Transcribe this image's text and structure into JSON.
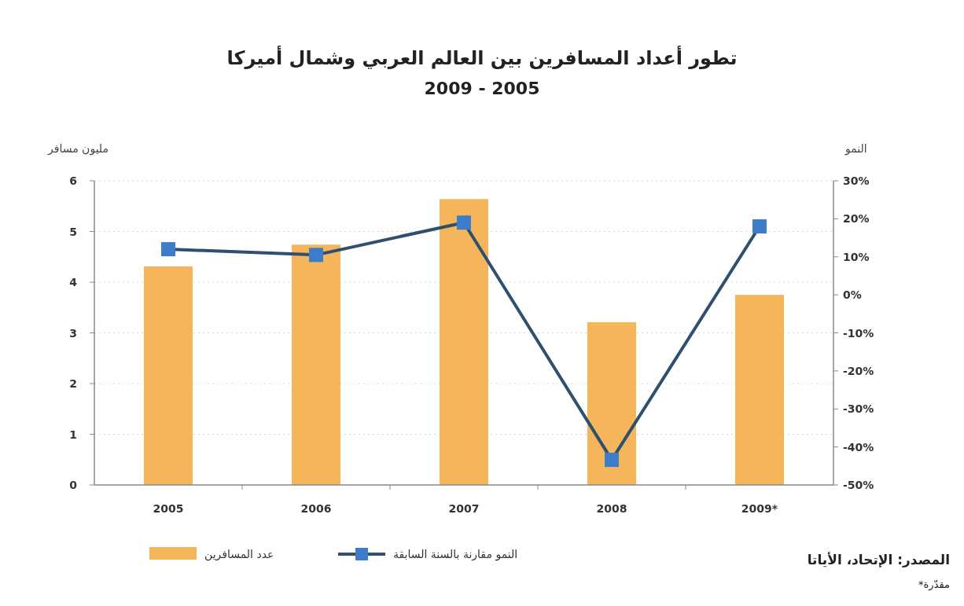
{
  "chart_data": {
    "type": "bar",
    "title": "تطور أعداد المسافرين بين العالم العربي وشمال أميركا",
    "subtitle": "2009 - 2005",
    "ylabel": "مليون مسافر",
    "y2label": "النمو",
    "categories": [
      "2005",
      "2006",
      "2007",
      "2008",
      "2009*"
    ],
    "series": [
      {
        "name": "عدد المسافرين",
        "color": "#f5b55a",
        "values": [
          4.31,
          4.74,
          5.64,
          3.21,
          3.75
        ]
      },
      {
        "name": "النمو مقارنة بالسنة السابقة",
        "type": "line",
        "axis": "y2",
        "color": "#2f4f6f",
        "marker": "square",
        "values": [
          12,
          10.5,
          19,
          -43.4,
          18
        ]
      }
    ],
    "ylim": [
      0,
      6
    ],
    "yticks": [
      0,
      1,
      2,
      3,
      4,
      5,
      6
    ],
    "y2lim": [
      -50,
      30
    ],
    "y2ticks": [
      {
        "value": 30,
        "label": "30%"
      },
      {
        "value": 20,
        "label": "20%"
      },
      {
        "value": 10,
        "label": "10%"
      },
      {
        "value": 0,
        "label": "0%"
      },
      {
        "value": -10,
        "label": "-10%"
      },
      {
        "value": -20,
        "label": "-20%"
      },
      {
        "value": -30,
        "label": "-30%"
      },
      {
        "value": -40,
        "label": "-40%"
      },
      {
        "value": -50,
        "label": "-50%"
      }
    ],
    "grid": "y",
    "legend": "bottom",
    "annotations": [
      "المصدر: الإتحاد، الأياتا",
      "*مقدّرة"
    ]
  }
}
